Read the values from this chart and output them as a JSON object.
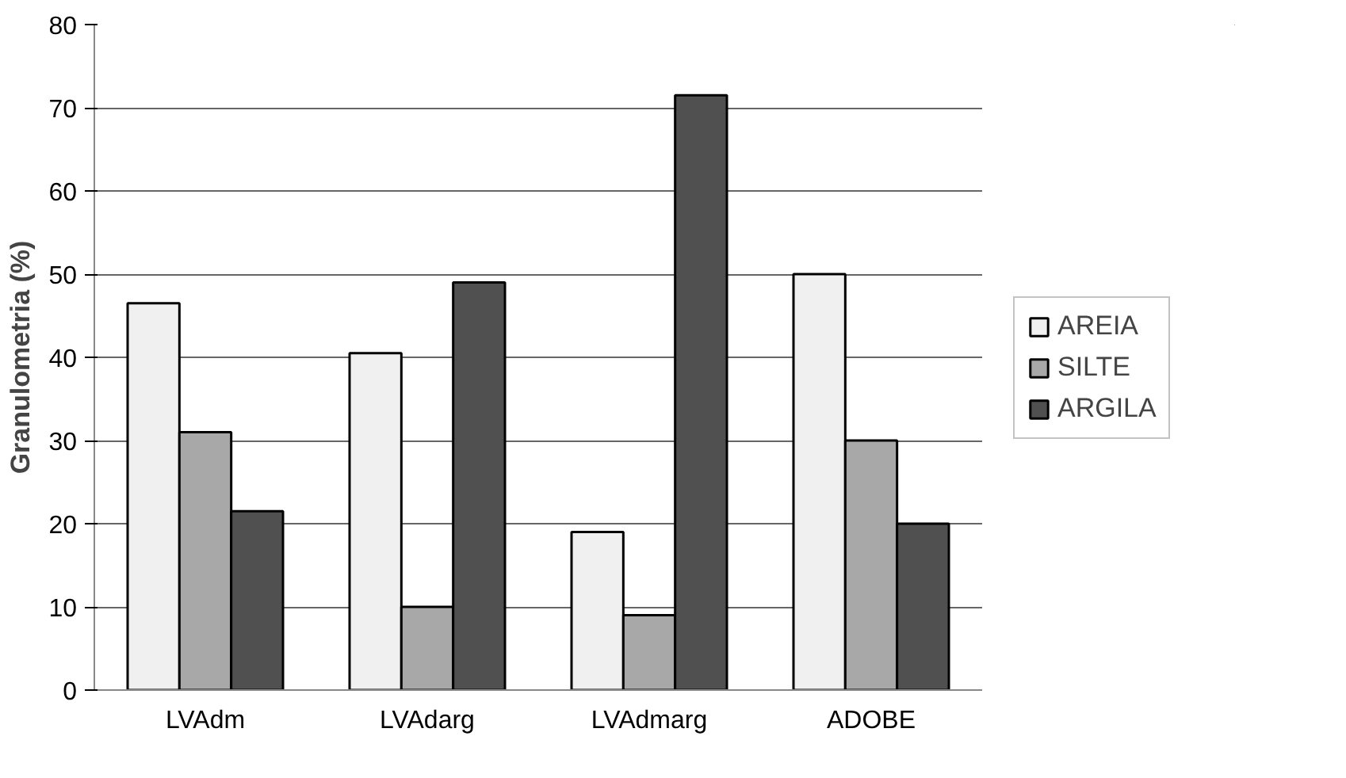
{
  "chart_data": {
    "type": "bar",
    "ylabel": "Granulometria (%)",
    "categories": [
      "LVAdm",
      "LVAdarg",
      "LVAdmarg",
      "ADOBE"
    ],
    "series": [
      {
        "name": "AREIA",
        "color": "#f0f0f0",
        "values": [
          46.5,
          40.5,
          19,
          50
        ]
      },
      {
        "name": "SILTE",
        "color": "#a8a8a8",
        "values": [
          31,
          10,
          9,
          30
        ]
      },
      {
        "name": "ARGILA",
        "color": "#505050",
        "values": [
          21.5,
          49,
          71.5,
          20
        ]
      }
    ],
    "ylim": [
      0,
      80
    ],
    "yticks": [
      0,
      10,
      20,
      30,
      40,
      50,
      60,
      70,
      80
    ],
    "grid": "y",
    "legend": "right"
  }
}
